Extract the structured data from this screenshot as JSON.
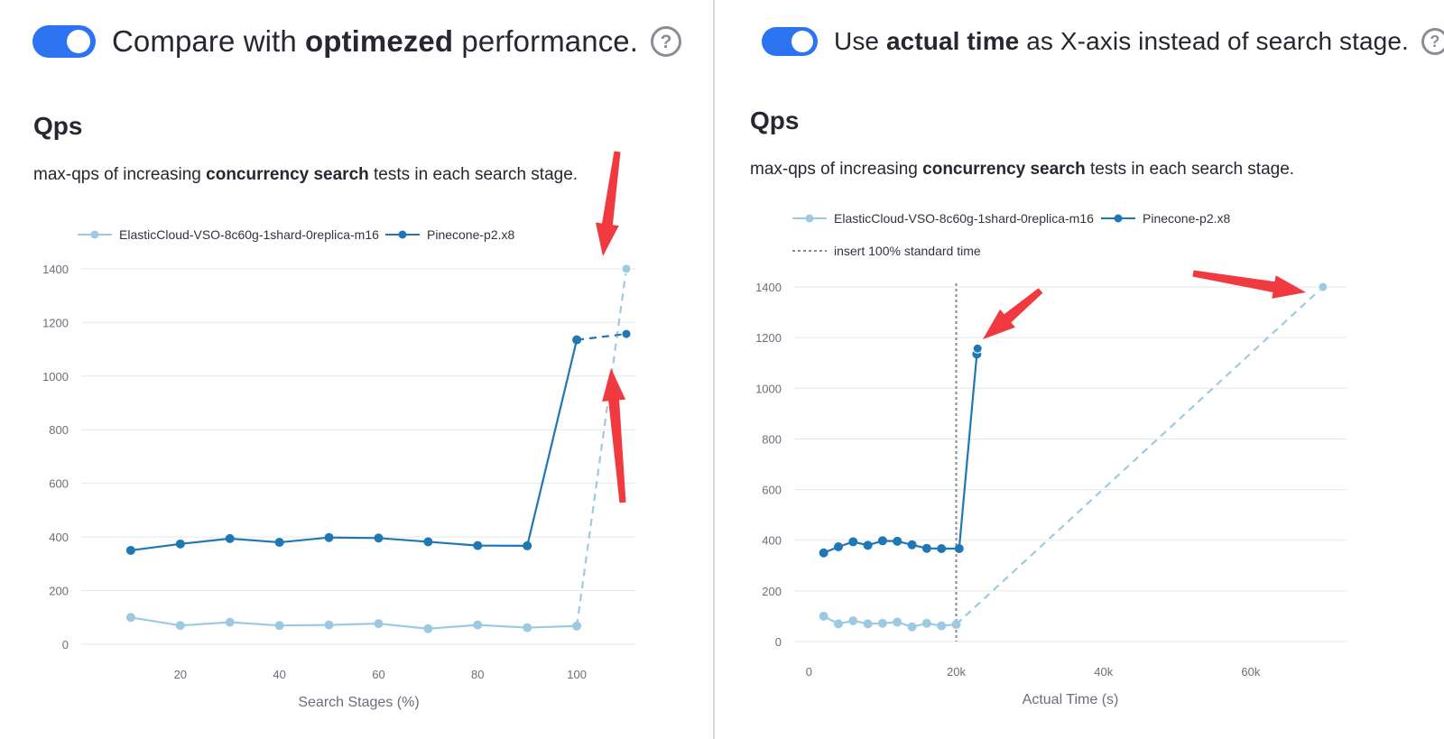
{
  "left": {
    "toggle": {
      "prefix": "Compare with ",
      "bold": "optimezed",
      "suffix": " performance.",
      "on": true
    },
    "help_icon": "question-circle-icon",
    "title": "Qps",
    "subtitle": {
      "prefix": "max-qps of increasing ",
      "bold": "concurrency search",
      "suffix": " tests in each search stage."
    }
  },
  "right": {
    "toggle": {
      "prefix": "Use ",
      "bold": "actual time",
      "suffix": " as X-axis instead of search stage.",
      "on": true
    },
    "help_icon": "question-circle-icon",
    "title": "Qps",
    "subtitle": {
      "prefix": "max-qps of increasing ",
      "bold": "concurrency search",
      "suffix": " tests in each search stage."
    }
  },
  "colors": {
    "elastic": "#9ecae1",
    "pinecone": "#1f77b4",
    "grid": "#e6e7ea",
    "reference": "#8a8a8a",
    "arrow": "#f03a3f",
    "toggle_on": "#2b73f0"
  },
  "chart_data": [
    {
      "type": "line",
      "title": "Qps",
      "xlabel": "Search Stages (%)",
      "ylabel": "",
      "x_ticks": [
        20,
        40,
        60,
        80,
        100
      ],
      "y_ticks": [
        0,
        200,
        400,
        600,
        800,
        1000,
        1200,
        1400
      ],
      "xlim": [
        0,
        112
      ],
      "ylim": [
        0,
        1450
      ],
      "grid": true,
      "legend_position": "top-left",
      "series": [
        {
          "name": "ElasticCloud-VSO-8c60g-1shard-0replica-m16",
          "color": "#9ecae1",
          "x": [
            10,
            20,
            30,
            40,
            50,
            60,
            70,
            80,
            90,
            100
          ],
          "y": [
            100,
            70,
            82,
            70,
            72,
            77,
            58,
            72,
            62,
            68
          ],
          "optimized": {
            "x": 110,
            "y": 1400
          }
        },
        {
          "name": "Pinecone-p2.x8",
          "color": "#1f77b4",
          "x": [
            10,
            20,
            30,
            40,
            50,
            60,
            70,
            80,
            90,
            100
          ],
          "y": [
            350,
            374,
            394,
            380,
            398,
            396,
            382,
            368,
            367,
            1135
          ],
          "optimized": {
            "x": 110,
            "y": 1157
          }
        }
      ],
      "annotations": [
        {
          "type": "red-arrow",
          "points_to": "ElasticCloud-VSO-8c60g-1shard-0replica-m16 optimized"
        },
        {
          "type": "red-arrow",
          "points_to": "Pinecone-p2.x8 optimized"
        }
      ]
    },
    {
      "type": "line",
      "title": "Qps",
      "xlabel": "Actual Time (s)",
      "ylabel": "",
      "x_ticks": [
        0,
        20000,
        40000,
        60000
      ],
      "x_tick_labels": [
        "0",
        "20k",
        "40k",
        "60k"
      ],
      "y_ticks": [
        0,
        200,
        400,
        600,
        800,
        1000,
        1200,
        1400
      ],
      "xlim": [
        -2000,
        73000
      ],
      "ylim": [
        0,
        1450
      ],
      "grid": true,
      "legend_position": "top-left",
      "reference_line": {
        "name": "insert 100% standard time",
        "x": 20000,
        "style": "dotted"
      },
      "series": [
        {
          "name": "ElasticCloud-VSO-8c60g-1shard-0replica-m16",
          "color": "#9ecae1",
          "x": [
            2000,
            4000,
            6000,
            8000,
            10000,
            12000,
            14000,
            16000,
            18000,
            20000
          ],
          "y": [
            100,
            70,
            82,
            70,
            72,
            77,
            58,
            72,
            62,
            68
          ],
          "optimized": {
            "x": 69800,
            "y": 1400
          }
        },
        {
          "name": "Pinecone-p2.x8",
          "color": "#1f77b4",
          "x": [
            2000,
            4000,
            6000,
            8000,
            10000,
            12000,
            14000,
            16000,
            18000,
            20400,
            22800
          ],
          "y": [
            350,
            374,
            394,
            380,
            398,
            396,
            382,
            368,
            367,
            367,
            1135
          ],
          "optimized": {
            "x": 22900,
            "y": 1157
          }
        }
      ],
      "annotations": [
        {
          "type": "red-arrow",
          "points_to": "Pinecone-p2.x8 optimized"
        },
        {
          "type": "red-arrow",
          "points_to": "ElasticCloud-VSO-8c60g-1shard-0replica-m16 optimized"
        }
      ]
    }
  ]
}
